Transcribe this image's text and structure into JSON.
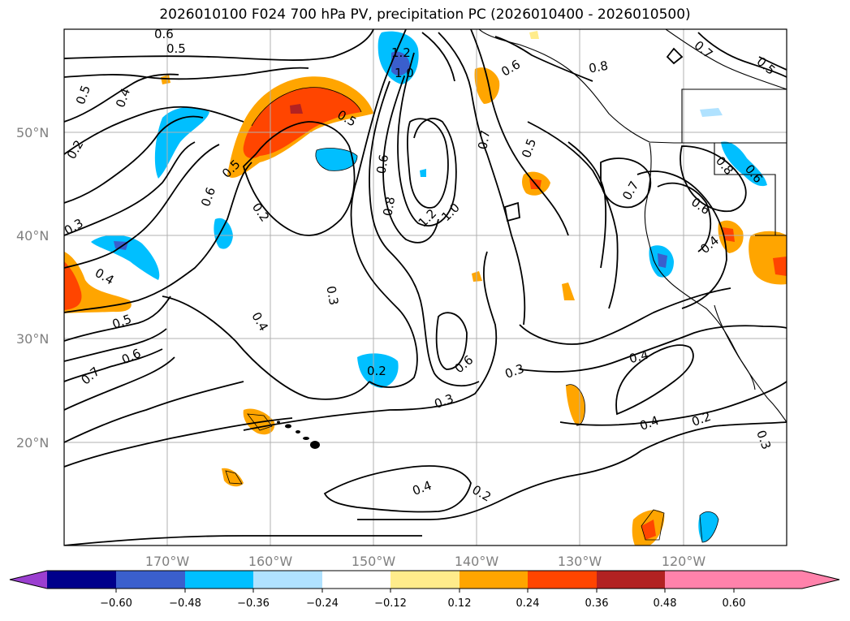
{
  "title": "2026010100 F024 700 hPa PV, precipitation PC (2026010400 - 2026010500)",
  "map": {
    "projection": "cylindrical",
    "lon_range": [
      -180,
      -110
    ],
    "lat_range": [
      10,
      60
    ],
    "lat_labels": [
      "50°N",
      "40°N",
      "30°N",
      "20°N"
    ],
    "lon_labels": [
      "170°W",
      "160°W",
      "150°W",
      "140°W",
      "130°W",
      "120°W"
    ]
  },
  "contour_labels": [
    "0.6",
    "0.5",
    "0.5",
    "0.4",
    "0.2",
    "0.3",
    "0.4",
    "0.5",
    "0.6",
    "0.7",
    "1.2",
    "1.0",
    "0.5",
    "0.5",
    "0.6",
    "0.2",
    "0.4",
    "0.3",
    "0.6",
    "0.8",
    "1.2",
    "1.0",
    "0.6",
    "0.7",
    "0.5",
    "0.8",
    "0.7",
    "0.5",
    "0.7",
    "0.8",
    "0.6",
    "0.6",
    "0.4",
    "0.2",
    "0.6",
    "0.3",
    "0.3",
    "0.4",
    "0.2",
    "0.4",
    "0.4",
    "0.2",
    "0.3"
  ],
  "colorbar": {
    "ticks": [
      "−0.60",
      "−0.48",
      "−0.36",
      "−0.24",
      "−0.12",
      "0.12",
      "0.24",
      "0.36",
      "0.48",
      "0.60"
    ],
    "colors": [
      "#9b3fd0",
      "#00008b",
      "#3a5fcd",
      "#00bfff",
      "#b0e2ff",
      "#ffffff",
      "#ffec8b",
      "#ffa500",
      "#ff4500",
      "#b22222",
      "#ff82ab"
    ]
  }
}
